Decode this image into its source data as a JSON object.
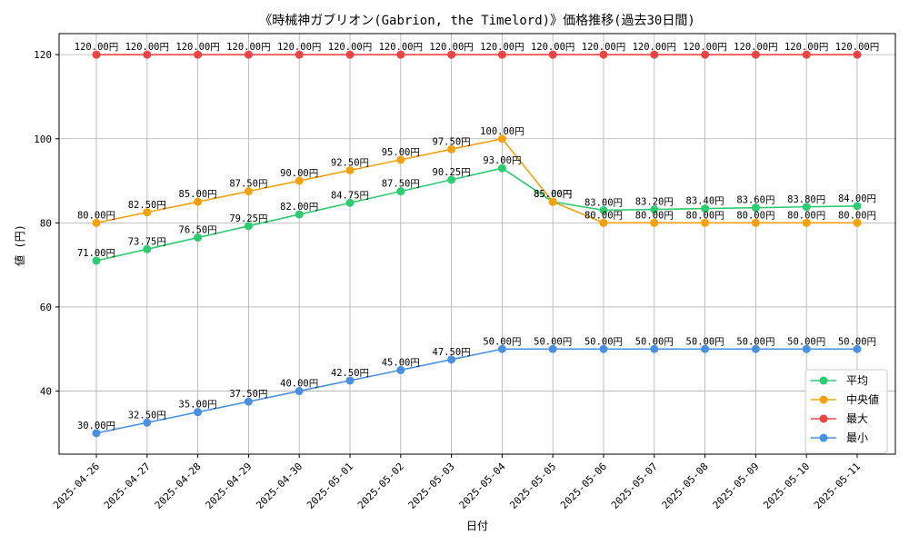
{
  "chart_data": {
    "type": "line",
    "title": "《時械神ガブリオン(Gabrion, the Timelord)》価格推移(過去30日間)",
    "xlabel": "日付",
    "ylabel": "値 (円)",
    "ylim": [
      25,
      125
    ],
    "yticks": [
      40,
      60,
      80,
      100,
      120
    ],
    "grid": true,
    "legend_position": "bottom-right",
    "label_suffix": "円",
    "categories": [
      "2025-04-26",
      "2025-04-27",
      "2025-04-28",
      "2025-04-29",
      "2025-04-30",
      "2025-05-01",
      "2025-05-02",
      "2025-05-03",
      "2025-05-04",
      "2025-05-05",
      "2025-05-06",
      "2025-05-07",
      "2025-05-08",
      "2025-05-09",
      "2025-05-10",
      "2025-05-11"
    ],
    "series": [
      {
        "name": "平均",
        "color": "#2ecc71",
        "values": [
          71.0,
          73.75,
          76.5,
          79.25,
          82.0,
          84.75,
          87.5,
          90.25,
          93.0,
          85.0,
          83.0,
          83.2,
          83.4,
          83.6,
          83.8,
          84.0
        ]
      },
      {
        "name": "中央値",
        "color": "#f5a10a",
        "values": [
          80.0,
          82.5,
          85.0,
          87.5,
          90.0,
          92.5,
          95.0,
          97.5,
          100.0,
          85.0,
          80.0,
          80.0,
          80.0,
          80.0,
          80.0,
          80.0
        ]
      },
      {
        "name": "最大",
        "color": "#ef4444",
        "values": [
          120.0,
          120.0,
          120.0,
          120.0,
          120.0,
          120.0,
          120.0,
          120.0,
          120.0,
          120.0,
          120.0,
          120.0,
          120.0,
          120.0,
          120.0,
          120.0
        ]
      },
      {
        "name": "最小",
        "color": "#4a90e2",
        "values": [
          30.0,
          32.5,
          35.0,
          37.5,
          40.0,
          42.5,
          45.0,
          47.5,
          50.0,
          50.0,
          50.0,
          50.0,
          50.0,
          50.0,
          50.0,
          50.0
        ]
      }
    ]
  }
}
